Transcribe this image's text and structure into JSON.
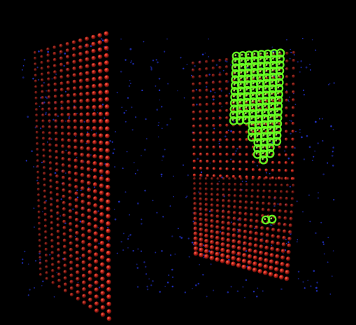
{
  "scene": {
    "background": "#000000",
    "red_sphere_color": "#e0281c",
    "red_sphere_shadow": "#3a0806",
    "green_ring_color": "#66ff22",
    "green_ring_highlight": "#ccff66",
    "blue_point_color": "#2233cc"
  }
}
